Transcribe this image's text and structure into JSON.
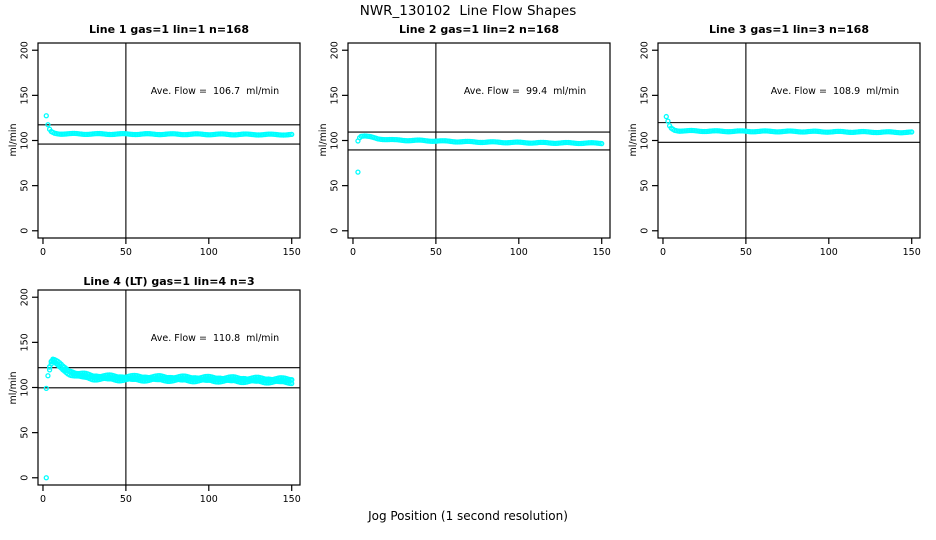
{
  "figure": {
    "title": "NWR_130102  Line Flow Shapes",
    "xlabel": "Jog Position (1 second resolution)",
    "background": "#ffffff",
    "point_color": "#00ffff",
    "line_color": "#000000"
  },
  "chart_data": [
    {
      "type": "scatter",
      "title": "Line 1 gas=1 lin=1 n=168",
      "ylabel": "ml/min",
      "annotation": "Ave. Flow =  106.7  ml/min",
      "ave_flow_ml_min": 106.7,
      "n": 168,
      "x_ticks": [
        0,
        50,
        100,
        150
      ],
      "y_ticks": [
        0,
        50,
        100,
        150,
        200
      ],
      "xlim": [
        -3,
        155
      ],
      "ylim": [
        -8,
        208
      ],
      "ref_lines": {
        "upper": 117.4,
        "lower": 96.0,
        "vertical_x": 50
      },
      "runs": 1,
      "jitter": 0.5,
      "series_keypoints": [
        [
          2,
          127
        ],
        [
          3,
          117
        ],
        [
          4,
          112
        ],
        [
          5,
          109.5
        ],
        [
          7,
          108
        ],
        [
          10,
          107.5
        ],
        [
          30,
          107.2
        ],
        [
          80,
          107
        ],
        [
          150,
          106.5
        ]
      ],
      "extra_points": []
    },
    {
      "type": "scatter",
      "title": "Line 2 gas=1 lin=2 n=168",
      "ylabel": "ml/min",
      "annotation": "Ave. Flow =  99.4  ml/min",
      "ave_flow_ml_min": 99.4,
      "n": 168,
      "x_ticks": [
        0,
        50,
        100,
        150
      ],
      "y_ticks": [
        0,
        50,
        100,
        150,
        200
      ],
      "xlim": [
        -3,
        155
      ],
      "ylim": [
        -8,
        208
      ],
      "ref_lines": {
        "upper": 109.3,
        "lower": 89.5,
        "vertical_x": 50
      },
      "runs": 1,
      "jitter": 0.5,
      "series_keypoints": [
        [
          3,
          100
        ],
        [
          4,
          103.5
        ],
        [
          5,
          105
        ],
        [
          7,
          105
        ],
        [
          10,
          104
        ],
        [
          15,
          102
        ],
        [
          25,
          100.5
        ],
        [
          40,
          100
        ],
        [
          70,
          98.5
        ],
        [
          110,
          97.5
        ],
        [
          150,
          97
        ]
      ],
      "extra_points": [
        [
          3,
          65
        ]
      ]
    },
    {
      "type": "scatter",
      "title": "Line 3 gas=1 lin=3 n=168",
      "ylabel": "ml/min",
      "annotation": "Ave. Flow =  108.9  ml/min",
      "ave_flow_ml_min": 108.9,
      "n": 168,
      "x_ticks": [
        0,
        50,
        100,
        150
      ],
      "y_ticks": [
        0,
        50,
        100,
        150,
        200
      ],
      "xlim": [
        -3,
        155
      ],
      "ylim": [
        -8,
        208
      ],
      "ref_lines": {
        "upper": 119.8,
        "lower": 98.0,
        "vertical_x": 50
      },
      "runs": 1,
      "jitter": 0.5,
      "series_keypoints": [
        [
          2,
          126
        ],
        [
          3,
          121
        ],
        [
          4,
          116
        ],
        [
          5,
          113.5
        ],
        [
          7,
          111.5
        ],
        [
          10,
          110.8
        ],
        [
          30,
          110.3
        ],
        [
          80,
          110
        ],
        [
          150,
          109
        ]
      ],
      "extra_points": []
    },
    {
      "type": "scatter",
      "title": "Line 4 (LT) gas=1 lin=4 n=3",
      "ylabel": "ml/min",
      "annotation": "Ave. Flow =  110.8  ml/min",
      "ave_flow_ml_min": 110.8,
      "n": 3,
      "x_ticks": [
        0,
        50,
        100,
        150
      ],
      "y_ticks": [
        0,
        50,
        100,
        150,
        200
      ],
      "xlim": [
        -3,
        155
      ],
      "ylim": [
        -8,
        208
      ],
      "ref_lines": {
        "upper": 121.9,
        "lower": 99.7,
        "vertical_x": 50
      },
      "runs": 3,
      "jitter": 1.3,
      "series_keypoints": [
        [
          4,
          122
        ],
        [
          5,
          128
        ],
        [
          6,
          130
        ],
        [
          7,
          129
        ],
        [
          9,
          126
        ],
        [
          12,
          121
        ],
        [
          16,
          117
        ],
        [
          22,
          113.5
        ],
        [
          30,
          111.5
        ],
        [
          45,
          110.5
        ],
        [
          70,
          110
        ],
        [
          110,
          109
        ],
        [
          150,
          107.5
        ]
      ],
      "extra_points": [
        [
          2,
          0
        ],
        [
          2,
          99
        ],
        [
          3,
          113
        ]
      ]
    }
  ]
}
